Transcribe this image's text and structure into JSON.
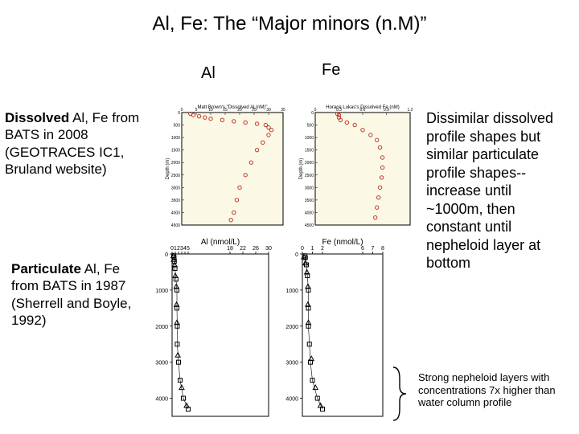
{
  "title": "Al, Fe: The “Major minors (n.M)”",
  "columns": {
    "al": "Al",
    "fe": "Fe"
  },
  "captions": {
    "left1_html": "<span class='bold'>Dissolved</span> Al, Fe from BATS in 2008 (GEOTRACES IC1, Bruland website)",
    "left2_html": "<span class='bold'>Particulate</span> Al, Fe from BATS in 1987 (Sherrell and Boyle, 1992)",
    "right1": "Dissimilar dissolved profile shapes but similar particulate profile shapes--increase until ~1000m, then constant until nepheloid layer at bottom",
    "right2": "Strong nepheloid layers with concentrations 7x higher than water column profile"
  },
  "chart_dissolved_al": {
    "type": "scatter-profile",
    "title": "Matt Brown's \"Dissolved Al (nM)\"",
    "xlim": [
      0,
      35
    ],
    "x_ticks_step": 5,
    "ylim_depth": [
      4500,
      0
    ],
    "y_ticks_step": 500,
    "ylabel": "Depth (m)",
    "bg": "#fbf9e6",
    "border": "#000000",
    "point_outline": "#c0392b",
    "point_fill": "none",
    "points": [
      [
        3,
        50
      ],
      [
        4,
        100
      ],
      [
        6,
        150
      ],
      [
        8,
        200
      ],
      [
        10,
        250
      ],
      [
        14,
        300
      ],
      [
        18,
        350
      ],
      [
        22,
        400
      ],
      [
        26,
        450
      ],
      [
        29,
        500
      ],
      [
        30,
        600
      ],
      [
        31,
        700
      ],
      [
        30,
        900
      ],
      [
        28,
        1200
      ],
      [
        26,
        1500
      ],
      [
        24,
        2000
      ],
      [
        22,
        2500
      ],
      [
        20,
        3000
      ],
      [
        19,
        3500
      ],
      [
        18,
        4000
      ],
      [
        17,
        4300
      ]
    ]
  },
  "chart_dissolved_fe": {
    "type": "scatter-profile",
    "title": "Horace Lukas's Dissolved Fe (nM)",
    "xlim": [
      0,
      1.2
    ],
    "x_ticks": [
      0,
      0.3,
      0.6,
      0.9,
      1.2
    ],
    "ylim_depth": [
      4500,
      0
    ],
    "y_ticks_step": 500,
    "ylabel": "Depth (m)",
    "bg": "#fbf9e6",
    "border": "#000000",
    "point_outline": "#c0392b",
    "point_fill": "none",
    "points": [
      [
        0.28,
        50
      ],
      [
        0.3,
        100
      ],
      [
        0.3,
        200
      ],
      [
        0.32,
        300
      ],
      [
        0.4,
        400
      ],
      [
        0.5,
        500
      ],
      [
        0.6,
        700
      ],
      [
        0.7,
        900
      ],
      [
        0.78,
        1100
      ],
      [
        0.82,
        1400
      ],
      [
        0.85,
        1800
      ],
      [
        0.85,
        2200
      ],
      [
        0.84,
        2600
      ],
      [
        0.82,
        3000
      ],
      [
        0.8,
        3400
      ],
      [
        0.78,
        3800
      ],
      [
        0.76,
        4200
      ]
    ]
  },
  "chart_particulate_al": {
    "type": "scatter-profile",
    "xlabel": "Al (nmol/L)",
    "xlim": [
      0,
      30
    ],
    "x_ticks": [
      0,
      1,
      2,
      3,
      4,
      5,
      18,
      22,
      26,
      30
    ],
    "ylim_depth": [
      4500,
      0
    ],
    "y_ticks": [
      0,
      1000,
      2000,
      3000,
      4000
    ],
    "bg": "#ffffff",
    "border": "#000000",
    "marker_color": "#000000",
    "series_square": [
      [
        0.5,
        50
      ],
      [
        0.6,
        100
      ],
      [
        0.7,
        200
      ],
      [
        0.9,
        400
      ],
      [
        1.2,
        700
      ],
      [
        1.5,
        1000
      ],
      [
        1.5,
        1500
      ],
      [
        1.6,
        2000
      ],
      [
        1.6,
        2500
      ],
      [
        2.0,
        3000
      ],
      [
        2.5,
        3500
      ],
      [
        3.5,
        4000
      ],
      [
        5,
        4300
      ]
    ],
    "series_triangle": [
      [
        0.4,
        50
      ],
      [
        0.5,
        150
      ],
      [
        0.8,
        300
      ],
      [
        1.0,
        600
      ],
      [
        1.3,
        900
      ],
      [
        1.4,
        1400
      ],
      [
        1.5,
        1900
      ],
      [
        1.8,
        2800
      ],
      [
        3.0,
        3700
      ],
      [
        4.5,
        4200
      ]
    ]
  },
  "chart_particulate_fe": {
    "type": "scatter-profile",
    "xlabel": "Fe (nmol/L)",
    "xlim": [
      0,
      8
    ],
    "x_ticks": [
      0,
      1,
      2,
      6,
      7,
      8
    ],
    "ylim_depth": [
      4500,
      0
    ],
    "y_ticks": [
      0,
      1000,
      2000,
      3000,
      4000
    ],
    "bg": "#ffffff",
    "border": "#000000",
    "marker_color": "#000000",
    "series_square": [
      [
        0.2,
        50
      ],
      [
        0.3,
        100
      ],
      [
        0.4,
        300
      ],
      [
        0.5,
        600
      ],
      [
        0.6,
        1000
      ],
      [
        0.6,
        1500
      ],
      [
        0.6,
        2000
      ],
      [
        0.7,
        2500
      ],
      [
        0.8,
        3000
      ],
      [
        1.0,
        3500
      ],
      [
        1.5,
        4000
      ],
      [
        2.0,
        4300
      ]
    ],
    "series_triangle": [
      [
        0.15,
        80
      ],
      [
        0.3,
        250
      ],
      [
        0.45,
        500
      ],
      [
        0.55,
        900
      ],
      [
        0.55,
        1400
      ],
      [
        0.6,
        1900
      ],
      [
        0.9,
        2900
      ],
      [
        1.3,
        3700
      ],
      [
        1.8,
        4200
      ]
    ]
  }
}
